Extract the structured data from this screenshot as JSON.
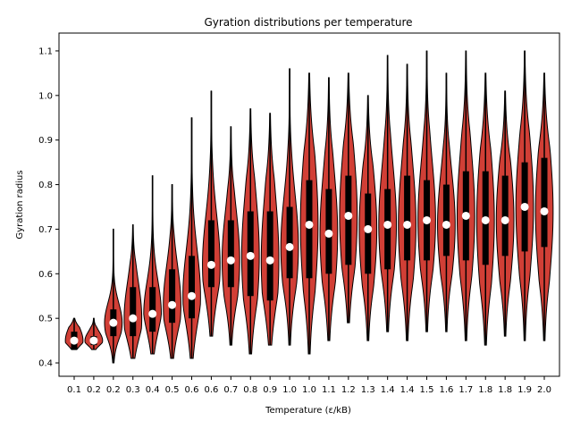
{
  "chart_data": {
    "type": "violin",
    "title": "Gyration distributions per temperature",
    "xlabel": "Temperature (ε/kB)",
    "ylabel": "Gyration radius",
    "ylim": [
      0.37,
      1.14
    ],
    "yticks": [
      0.4,
      0.5,
      0.6,
      0.7,
      0.8,
      0.9,
      1.0,
      1.1
    ],
    "grid": false,
    "colors": {
      "body": "#d13f36",
      "edge": "#000000",
      "box": "#000000",
      "median": "#ffffff"
    },
    "categories": [
      "0.1",
      "0.2",
      "0.2",
      "0.3",
      "0.4",
      "0.5",
      "0.6",
      "0.6",
      "0.7",
      "0.8",
      "0.9",
      "1.0",
      "1.0",
      "1.1",
      "1.2",
      "1.3",
      "1.4",
      "1.4",
      "1.5",
      "1.6",
      "1.7",
      "1.8",
      "1.8",
      "1.9",
      "2.0"
    ],
    "violins": [
      {
        "min": 0.43,
        "q1": 0.43,
        "median": 0.45,
        "q3": 0.47,
        "max": 0.5
      },
      {
        "min": 0.43,
        "q1": 0.44,
        "median": 0.45,
        "q3": 0.46,
        "max": 0.5
      },
      {
        "min": 0.4,
        "q1": 0.46,
        "median": 0.49,
        "q3": 0.52,
        "max": 0.7
      },
      {
        "min": 0.41,
        "q1": 0.46,
        "median": 0.5,
        "q3": 0.57,
        "max": 0.71
      },
      {
        "min": 0.42,
        "q1": 0.47,
        "median": 0.51,
        "q3": 0.57,
        "max": 0.82
      },
      {
        "min": 0.41,
        "q1": 0.49,
        "median": 0.53,
        "q3": 0.61,
        "max": 0.8
      },
      {
        "min": 0.41,
        "q1": 0.5,
        "median": 0.55,
        "q3": 0.64,
        "max": 0.95
      },
      {
        "min": 0.46,
        "q1": 0.57,
        "median": 0.62,
        "q3": 0.72,
        "max": 1.01
      },
      {
        "min": 0.44,
        "q1": 0.57,
        "median": 0.63,
        "q3": 0.72,
        "max": 0.93
      },
      {
        "min": 0.42,
        "q1": 0.55,
        "median": 0.64,
        "q3": 0.74,
        "max": 0.97
      },
      {
        "min": 0.44,
        "q1": 0.54,
        "median": 0.63,
        "q3": 0.74,
        "max": 0.96
      },
      {
        "min": 0.44,
        "q1": 0.59,
        "median": 0.66,
        "q3": 0.75,
        "max": 1.06
      },
      {
        "min": 0.42,
        "q1": 0.59,
        "median": 0.71,
        "q3": 0.81,
        "max": 1.05
      },
      {
        "min": 0.45,
        "q1": 0.6,
        "median": 0.69,
        "q3": 0.79,
        "max": 1.04
      },
      {
        "min": 0.49,
        "q1": 0.62,
        "median": 0.73,
        "q3": 0.82,
        "max": 1.05
      },
      {
        "min": 0.45,
        "q1": 0.6,
        "median": 0.7,
        "q3": 0.78,
        "max": 1.0
      },
      {
        "min": 0.47,
        "q1": 0.61,
        "median": 0.71,
        "q3": 0.79,
        "max": 1.09
      },
      {
        "min": 0.45,
        "q1": 0.63,
        "median": 0.71,
        "q3": 0.82,
        "max": 1.07
      },
      {
        "min": 0.47,
        "q1": 0.63,
        "median": 0.72,
        "q3": 0.81,
        "max": 1.1
      },
      {
        "min": 0.47,
        "q1": 0.64,
        "median": 0.71,
        "q3": 0.8,
        "max": 1.05
      },
      {
        "min": 0.45,
        "q1": 0.63,
        "median": 0.73,
        "q3": 0.83,
        "max": 1.1
      },
      {
        "min": 0.44,
        "q1": 0.62,
        "median": 0.72,
        "q3": 0.83,
        "max": 1.05
      },
      {
        "min": 0.46,
        "q1": 0.64,
        "median": 0.72,
        "q3": 0.82,
        "max": 1.01
      },
      {
        "min": 0.45,
        "q1": 0.65,
        "median": 0.75,
        "q3": 0.85,
        "max": 1.1
      },
      {
        "min": 0.45,
        "q1": 0.66,
        "median": 0.74,
        "q3": 0.86,
        "max": 1.05
      }
    ]
  }
}
